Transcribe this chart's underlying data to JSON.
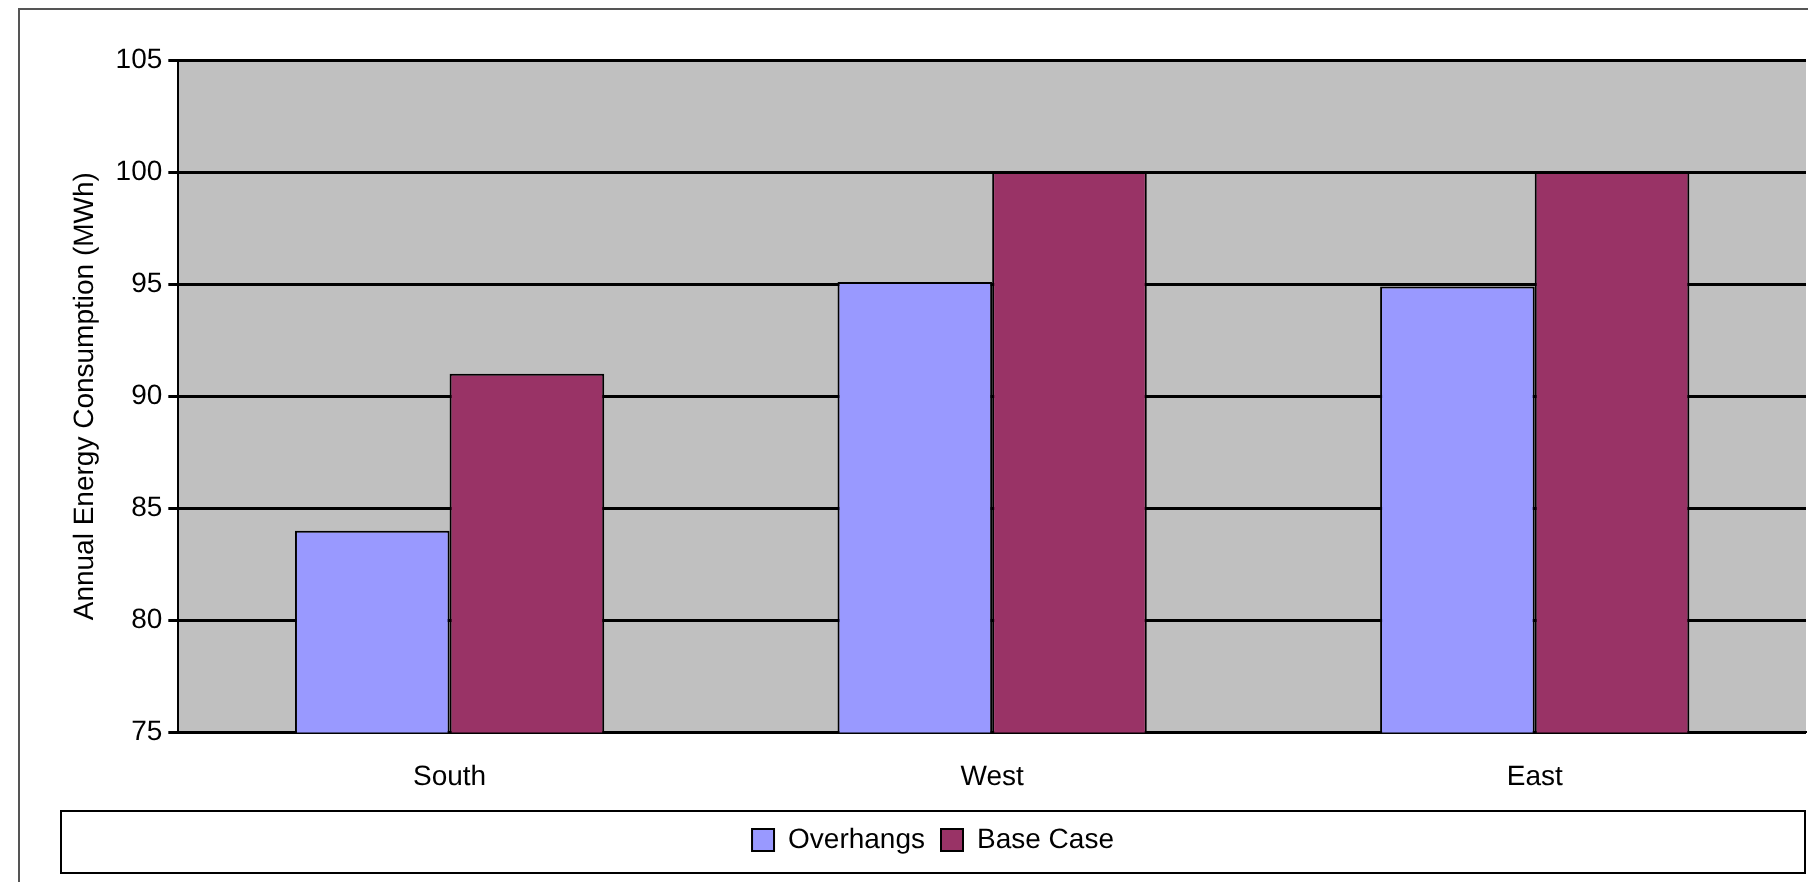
{
  "chart_data": {
    "type": "bar",
    "ylabel": "Annual Energy Consumption (MWh)",
    "categories": [
      "South",
      "West",
      "East"
    ],
    "series": [
      {
        "name": "Overhangs",
        "color": "#9999ff",
        "values": [
          84,
          95.1,
          94.9
        ]
      },
      {
        "name": "Base Case",
        "color": "#993366",
        "values": [
          91,
          100,
          100
        ]
      }
    ],
    "ylim": [
      75,
      105
    ],
    "yticks": [
      75,
      80,
      85,
      90,
      95,
      100,
      105
    ],
    "grid": "y",
    "legend": "bottom"
  }
}
